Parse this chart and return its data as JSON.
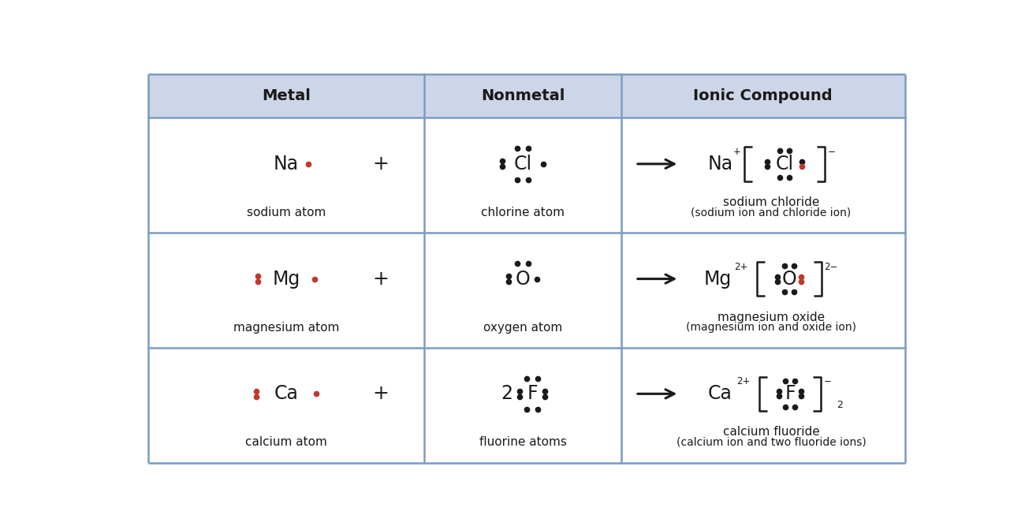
{
  "bg_color": "#ffffff",
  "header_bg": "#cdd5e8",
  "border_color": "#7b9cc2",
  "col_splits": [
    0.0,
    0.365,
    0.625,
    1.0
  ],
  "col_labels": [
    "Metal",
    "Nonmetal",
    "Ionic Compound"
  ],
  "rows": [
    {
      "metal_symbol": "Na",
      "metal_dot_right": true,
      "metal_dot_left": false,
      "metal_label": "sodium atom",
      "nonmetal_prefix": "",
      "nonmetal_symbol": "Cl",
      "nm_dots_left_pair": true,
      "nm_dots_right_single": true,
      "nm_dots_top_pair": true,
      "nm_dots_bottom_pair": true,
      "nonmetal_label": "chlorine atom",
      "ion_metal": "Na",
      "ion_metal_charge": "+",
      "ion_nonmetal": "Cl",
      "ion_dots_left_pair": true,
      "ion_dots_right_pair_colors": [
        "black",
        "red"
      ],
      "ion_dots_top_pair": true,
      "ion_dots_bottom_pair": true,
      "ion_anion_charge": "−",
      "ion_subscript": "",
      "ionic_name": "sodium chloride",
      "ionic_name2": "(sodium ion and chloride ion)"
    },
    {
      "metal_symbol": "Mg",
      "metal_dot_right": true,
      "metal_dot_left": true,
      "metal_label": "magnesium atom",
      "nonmetal_prefix": "",
      "nonmetal_symbol": "O",
      "nm_dots_left_pair": true,
      "nm_dots_right_single": true,
      "nm_dots_top_pair": true,
      "nm_dots_bottom_pair": false,
      "nonmetal_label": "oxygen atom",
      "ion_metal": "Mg",
      "ion_metal_charge": "2+",
      "ion_nonmetal": "O",
      "ion_dots_left_pair": true,
      "ion_dots_right_pair_colors": [
        "red",
        "red"
      ],
      "ion_dots_top_pair": true,
      "ion_dots_bottom_pair": true,
      "ion_anion_charge": "2−",
      "ion_subscript": "",
      "ionic_name": "magnesium oxide",
      "ionic_name2": "(magnesium ion and oxide ion)"
    },
    {
      "metal_symbol": "Ca",
      "metal_dot_right": true,
      "metal_dot_left": true,
      "metal_label": "calcium atom",
      "nonmetal_prefix": "2",
      "nonmetal_symbol": "F",
      "nm_dots_left_pair": true,
      "nm_dots_right_pair": true,
      "nm_dots_top_pair": true,
      "nm_dots_bottom_pair": true,
      "nonmetal_label": "fluorine atoms",
      "ion_metal": "Ca",
      "ion_metal_charge": "2+",
      "ion_nonmetal": "F",
      "ion_dots_left_pair": true,
      "ion_dots_right_pair_colors": [
        "black",
        "black"
      ],
      "ion_dots_top_pair": true,
      "ion_dots_bottom_pair": true,
      "ion_anion_charge": "−",
      "ion_subscript": "2",
      "ionic_name": "calcium fluoride",
      "ionic_name2": "(calcium ion and two fluoride ions)"
    }
  ]
}
